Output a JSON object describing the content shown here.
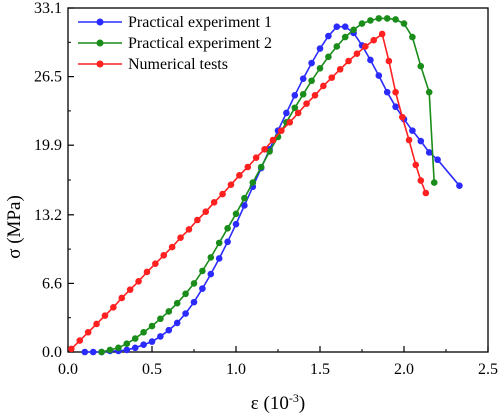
{
  "chart_data": {
    "type": "line",
    "xlabel": "ε (10",
    "xlabel_exp": "-3",
    "xlabel_close": ")",
    "ylabel": "σ (MPa)",
    "xlim": [
      0,
      2.5
    ],
    "ylim": [
      0,
      33.1
    ],
    "xticks": [
      "0.0",
      "0.5",
      "1.0",
      "1.5",
      "2.0",
      "2.5"
    ],
    "yticks": [
      "0.0",
      "6.6",
      "13.2",
      "19.9",
      "26.5",
      "33.1"
    ],
    "xtick_values": [
      0,
      0.5,
      1.0,
      1.5,
      2.0,
      2.5
    ],
    "ytick_values": [
      0,
      6.6,
      13.2,
      19.9,
      26.5,
      33.1
    ],
    "grid": false,
    "legend_position": "top-left",
    "series": [
      {
        "name": "Practical experiment 1",
        "color": "#2b2bff",
        "x": [
          0.1,
          0.15,
          0.2,
          0.25,
          0.3,
          0.35,
          0.4,
          0.45,
          0.5,
          0.55,
          0.6,
          0.65,
          0.7,
          0.75,
          0.8,
          0.85,
          0.9,
          0.95,
          1.0,
          1.05,
          1.1,
          1.15,
          1.2,
          1.25,
          1.3,
          1.35,
          1.4,
          1.45,
          1.5,
          1.55,
          1.6,
          1.65,
          1.7,
          1.75,
          1.8,
          1.85,
          1.9,
          1.95,
          2.0,
          2.05,
          2.1,
          2.15,
          2.2,
          2.33
        ],
        "y": [
          0.0,
          0.0,
          0.0,
          0.1,
          0.1,
          0.2,
          0.4,
          0.7,
          1.0,
          1.5,
          2.1,
          2.8,
          3.7,
          4.8,
          6.1,
          7.5,
          9.0,
          10.6,
          12.3,
          14.1,
          15.9,
          17.7,
          19.5,
          21.3,
          23.0,
          24.7,
          26.3,
          27.8,
          29.2,
          30.4,
          31.3,
          31.3,
          30.7,
          29.5,
          28.1,
          26.6,
          25.0,
          23.6,
          22.4,
          21.3,
          20.3,
          19.2,
          18.5,
          16.0
        ]
      },
      {
        "name": "Practical experiment 2",
        "color": "#1a8c1a",
        "x": [
          0.2,
          0.25,
          0.3,
          0.35,
          0.4,
          0.45,
          0.5,
          0.55,
          0.6,
          0.65,
          0.7,
          0.75,
          0.8,
          0.85,
          0.9,
          0.95,
          1.0,
          1.05,
          1.1,
          1.15,
          1.2,
          1.25,
          1.3,
          1.35,
          1.4,
          1.45,
          1.5,
          1.55,
          1.6,
          1.65,
          1.7,
          1.75,
          1.8,
          1.85,
          1.9,
          1.95,
          2.0,
          2.05,
          2.1,
          2.15,
          2.18
        ],
        "y": [
          0.0,
          0.2,
          0.4,
          0.8,
          1.3,
          1.9,
          2.5,
          3.2,
          3.9,
          4.7,
          5.6,
          6.6,
          7.8,
          9.1,
          10.5,
          11.9,
          13.3,
          14.8,
          16.3,
          17.8,
          19.3,
          20.7,
          22.1,
          23.5,
          24.8,
          26.1,
          27.3,
          28.4,
          29.4,
          30.3,
          31.0,
          31.6,
          31.9,
          32.1,
          32.1,
          32.0,
          31.6,
          30.3,
          27.5,
          25.0,
          16.3
        ]
      },
      {
        "name": "Numerical tests",
        "color": "#ff2020",
        "x": [
          0.02,
          0.07,
          0.12,
          0.17,
          0.22,
          0.27,
          0.32,
          0.37,
          0.42,
          0.47,
          0.52,
          0.57,
          0.62,
          0.67,
          0.72,
          0.77,
          0.82,
          0.87,
          0.92,
          0.97,
          1.02,
          1.07,
          1.12,
          1.17,
          1.22,
          1.27,
          1.32,
          1.37,
          1.42,
          1.47,
          1.52,
          1.57,
          1.62,
          1.67,
          1.72,
          1.77,
          1.82,
          1.87,
          1.91,
          1.95,
          1.99,
          2.03,
          2.07,
          2.1,
          2.13
        ],
        "y": [
          0.3,
          1.1,
          1.9,
          2.7,
          3.5,
          4.3,
          5.2,
          6.0,
          6.8,
          7.7,
          8.5,
          9.3,
          10.1,
          11.0,
          11.8,
          12.7,
          13.5,
          14.4,
          15.2,
          16.1,
          17.0,
          17.8,
          18.7,
          19.5,
          20.4,
          21.3,
          22.1,
          23.0,
          23.9,
          24.7,
          25.6,
          26.4,
          27.2,
          28.0,
          28.7,
          29.4,
          30.0,
          30.6,
          28.0,
          25.0,
          22.6,
          20.4,
          18.0,
          16.5,
          15.3
        ]
      }
    ]
  }
}
